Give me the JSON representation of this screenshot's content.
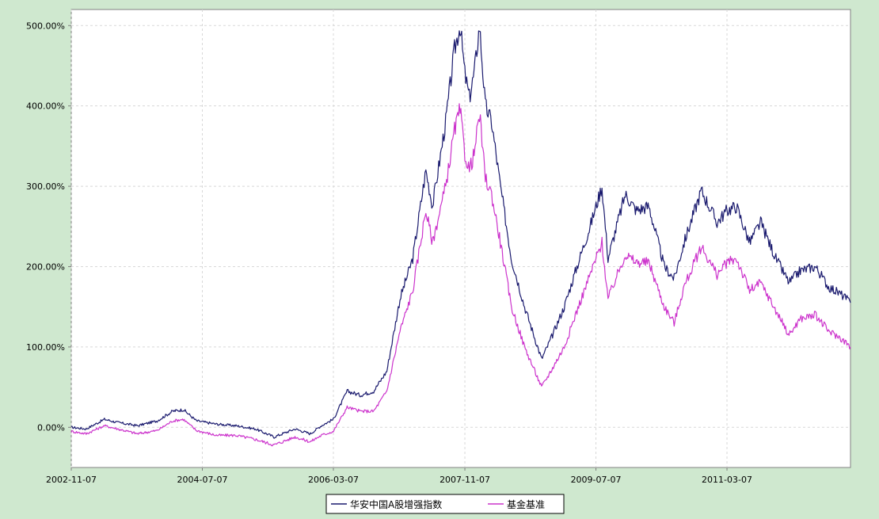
{
  "chart_data": {
    "type": "line",
    "title": "",
    "xlabel": "",
    "ylabel": "",
    "x_ticks": [
      "2002-11-07",
      "2004-07-07",
      "2006-03-07",
      "2007-11-07",
      "2009-07-07",
      "2011-03-07"
    ],
    "xlim": [
      "2002-11-07",
      "2012-09-30"
    ],
    "y_ticks": [
      "0.00%",
      "100.00%",
      "200.00%",
      "300.00%",
      "400.00%",
      "500.00%"
    ],
    "ylim": [
      -50,
      520
    ],
    "grid": true,
    "legend_position": "bottom-center",
    "colors": {
      "fund": "#1a1a6e",
      "benchmark": "#cc33cc",
      "background": "#cfe8cf",
      "plot": "#ffffff",
      "grid": "#d8d8d8"
    },
    "series": [
      {
        "name": "华安中国A股增强指数",
        "color": "#1a1a6e",
        "points": [
          [
            "2002-11-07",
            0
          ],
          [
            "2003-01-15",
            -2
          ],
          [
            "2003-04-10",
            10
          ],
          [
            "2003-06-10",
            6
          ],
          [
            "2003-09-10",
            2
          ],
          [
            "2003-12-10",
            8
          ],
          [
            "2004-02-20",
            20
          ],
          [
            "2004-04-10",
            22
          ],
          [
            "2004-06-10",
            8
          ],
          [
            "2004-09-10",
            4
          ],
          [
            "2004-12-10",
            2
          ],
          [
            "2005-03-10",
            -2
          ],
          [
            "2005-06-05",
            -12
          ],
          [
            "2005-09-10",
            -2
          ],
          [
            "2005-11-20",
            -8
          ],
          [
            "2006-01-10",
            2
          ],
          [
            "2006-03-07",
            10
          ],
          [
            "2006-05-10",
            45
          ],
          [
            "2006-07-10",
            40
          ],
          [
            "2006-09-10",
            45
          ],
          [
            "2006-11-10",
            70
          ],
          [
            "2007-01-10",
            160
          ],
          [
            "2007-03-10",
            210
          ],
          [
            "2007-05-10",
            320
          ],
          [
            "2007-06-10",
            275
          ],
          [
            "2007-08-10",
            380
          ],
          [
            "2007-09-20",
            470
          ],
          [
            "2007-10-16",
            500
          ],
          [
            "2007-11-07",
            440
          ],
          [
            "2007-11-28",
            410
          ],
          [
            "2007-12-20",
            440
          ],
          [
            "2008-01-14",
            500
          ],
          [
            "2008-02-10",
            400
          ],
          [
            "2008-03-10",
            380
          ],
          [
            "2008-04-20",
            300
          ],
          [
            "2008-06-10",
            210
          ],
          [
            "2008-08-10",
            150
          ],
          [
            "2008-10-28",
            85
          ],
          [
            "2008-12-10",
            110
          ],
          [
            "2009-02-10",
            150
          ],
          [
            "2009-04-10",
            200
          ],
          [
            "2009-06-10",
            250
          ],
          [
            "2009-08-04",
            300
          ],
          [
            "2009-09-01",
            210
          ],
          [
            "2009-11-20",
            290
          ],
          [
            "2010-01-10",
            270
          ],
          [
            "2010-03-10",
            275
          ],
          [
            "2010-05-20",
            200
          ],
          [
            "2010-07-05",
            185
          ],
          [
            "2010-08-20",
            230
          ],
          [
            "2010-11-08",
            295
          ],
          [
            "2011-01-20",
            255
          ],
          [
            "2011-03-07",
            270
          ],
          [
            "2011-04-20",
            275
          ],
          [
            "2011-06-20",
            230
          ],
          [
            "2011-08-10",
            255
          ],
          [
            "2011-10-20",
            210
          ],
          [
            "2011-12-20",
            180
          ],
          [
            "2012-02-10",
            195
          ],
          [
            "2012-04-20",
            200
          ],
          [
            "2012-06-20",
            175
          ],
          [
            "2012-08-20",
            165
          ],
          [
            "2012-09-30",
            155
          ]
        ]
      },
      {
        "name": "基金基准",
        "color": "#cc33cc",
        "points": [
          [
            "2002-11-07",
            -5
          ],
          [
            "2003-01-15",
            -8
          ],
          [
            "2003-04-10",
            2
          ],
          [
            "2003-06-10",
            -2
          ],
          [
            "2003-09-10",
            -8
          ],
          [
            "2003-12-10",
            -4
          ],
          [
            "2004-02-20",
            8
          ],
          [
            "2004-04-10",
            10
          ],
          [
            "2004-06-10",
            -4
          ],
          [
            "2004-09-10",
            -10
          ],
          [
            "2004-12-10",
            -10
          ],
          [
            "2005-03-10",
            -15
          ],
          [
            "2005-06-05",
            -22
          ],
          [
            "2005-09-10",
            -12
          ],
          [
            "2005-11-20",
            -18
          ],
          [
            "2006-01-10",
            -10
          ],
          [
            "2006-03-07",
            -5
          ],
          [
            "2006-05-10",
            25
          ],
          [
            "2006-07-10",
            20
          ],
          [
            "2006-09-10",
            20
          ],
          [
            "2006-11-10",
            45
          ],
          [
            "2007-01-10",
            120
          ],
          [
            "2007-03-10",
            170
          ],
          [
            "2007-05-10",
            270
          ],
          [
            "2007-06-10",
            230
          ],
          [
            "2007-08-10",
            300
          ],
          [
            "2007-09-20",
            370
          ],
          [
            "2007-10-16",
            395
          ],
          [
            "2007-11-07",
            340
          ],
          [
            "2007-11-28",
            320
          ],
          [
            "2007-12-20",
            340
          ],
          [
            "2008-01-14",
            390
          ],
          [
            "2008-02-10",
            310
          ],
          [
            "2008-03-10",
            290
          ],
          [
            "2008-04-20",
            230
          ],
          [
            "2008-06-10",
            150
          ],
          [
            "2008-08-10",
            100
          ],
          [
            "2008-10-28",
            50
          ],
          [
            "2008-12-10",
            70
          ],
          [
            "2009-02-10",
            100
          ],
          [
            "2009-04-10",
            145
          ],
          [
            "2009-06-10",
            190
          ],
          [
            "2009-08-04",
            230
          ],
          [
            "2009-09-01",
            160
          ],
          [
            "2009-11-20",
            215
          ],
          [
            "2010-01-10",
            205
          ],
          [
            "2010-03-10",
            205
          ],
          [
            "2010-05-20",
            150
          ],
          [
            "2010-07-05",
            130
          ],
          [
            "2010-08-20",
            175
          ],
          [
            "2010-11-08",
            225
          ],
          [
            "2011-01-20",
            190
          ],
          [
            "2011-03-07",
            205
          ],
          [
            "2011-04-20",
            210
          ],
          [
            "2011-06-20",
            170
          ],
          [
            "2011-08-10",
            180
          ],
          [
            "2011-10-20",
            145
          ],
          [
            "2011-12-20",
            115
          ],
          [
            "2012-02-10",
            135
          ],
          [
            "2012-04-20",
            140
          ],
          [
            "2012-06-20",
            120
          ],
          [
            "2012-08-20",
            110
          ],
          [
            "2012-09-30",
            100
          ]
        ]
      }
    ]
  }
}
